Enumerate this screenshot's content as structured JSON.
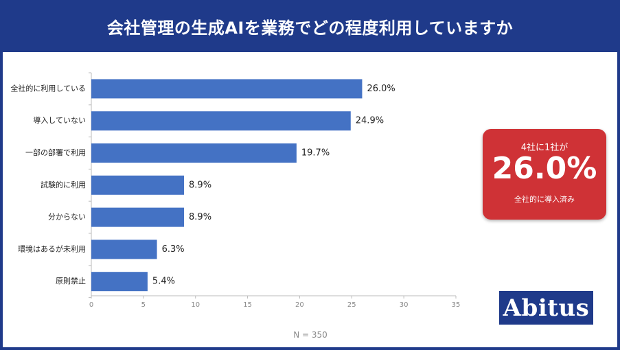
{
  "header": {
    "title": "会社管理の生成AIを業務でどの程度利用していますか"
  },
  "chart_data": {
    "type": "bar",
    "orientation": "horizontal",
    "categories": [
      "全社的に利用している",
      "導入していない",
      "一部の部署で利用",
      "試験的に利用",
      "分からない",
      "環境はあるが未利用",
      "原則禁止"
    ],
    "values": [
      26.0,
      24.9,
      19.7,
      8.9,
      8.9,
      6.3,
      5.4
    ],
    "value_labels": [
      "26.0%",
      "24.9%",
      "19.7%",
      "8.9%",
      "8.9%",
      "6.3%",
      "5.4%"
    ],
    "xlim": [
      0,
      35
    ],
    "x_ticks": [
      0,
      5,
      10,
      15,
      20,
      25,
      30,
      35
    ],
    "note": "N = 350",
    "bar_color": "#4472c4"
  },
  "callout": {
    "top": "4社に1社が",
    "big": "26.0%",
    "bottom": "全社的に導入済み",
    "color": "#cf3236"
  },
  "logo": {
    "text": "Abitus"
  },
  "colors": {
    "brand": "#1f3a8a"
  }
}
